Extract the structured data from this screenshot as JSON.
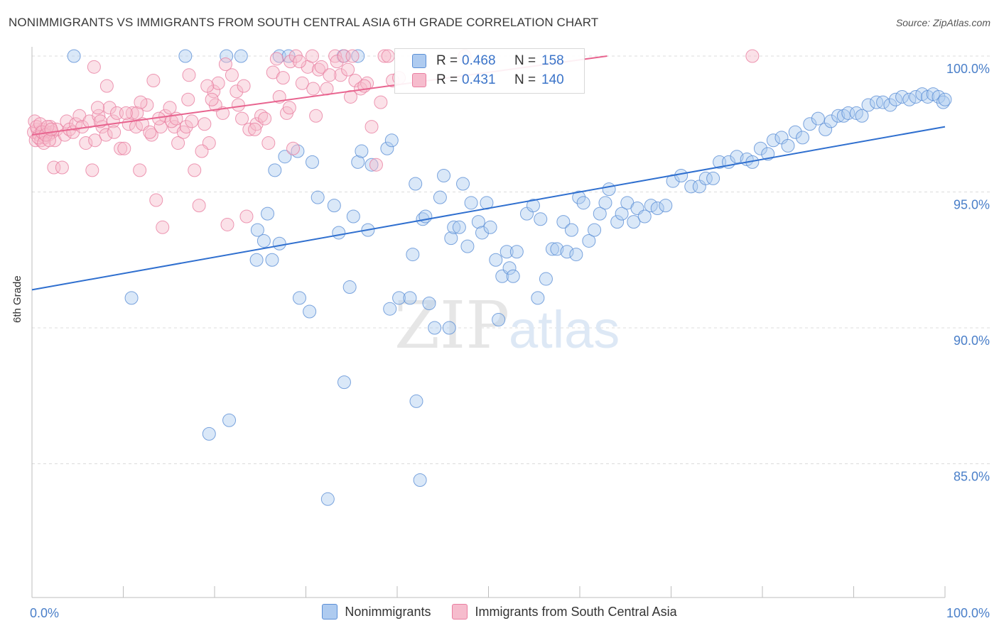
{
  "title": "NONIMMIGRANTS VS IMMIGRANTS FROM SOUTH CENTRAL ASIA 6TH GRADE CORRELATION CHART",
  "source": "Source: ZipAtlas.com",
  "watermark": {
    "zip": "ZIP",
    "atlas": "atlas"
  },
  "colors": {
    "blue": "#5b8fd6",
    "blue_fill": "#aecbf0",
    "pink": "#e97ea0",
    "pink_fill": "#f6bccd",
    "blue_line": "#2f6fcf",
    "pink_line": "#e8648f",
    "tick_text": "#4a7fc9"
  },
  "stats": [
    {
      "r_label": "R =",
      "r_value": "0.468",
      "n_label": "N =",
      "n_value": "158"
    },
    {
      "r_label": "R =",
      "r_value": "0.431",
      "n_label": "N =",
      "n_value": "140"
    }
  ],
  "legend": [
    "Nonimmigrants",
    "Immigrants from South Central Asia"
  ],
  "chart_data": {
    "type": "scatter",
    "title": "NONIMMIGRANTS VS IMMIGRANTS FROM SOUTH CENTRAL ASIA 6TH GRADE CORRELATION CHART",
    "xlabel": "",
    "ylabel": "6th Grade",
    "xlim": [
      0,
      100
    ],
    "ylim": [
      80.5,
      100.7
    ],
    "x_tick_labels": [
      "0.0%",
      "100.0%"
    ],
    "y_ticks": [
      100,
      95,
      90,
      85
    ],
    "y_tick_labels": [
      "100.0%",
      "95.0%",
      "90.0%",
      "85.0%"
    ],
    "grid": true,
    "legend_position": "bottom",
    "series": [
      {
        "name": "Nonimmigrants",
        "color": "#5b8fd6",
        "trend": [
          [
            0,
            91.4
          ],
          [
            100,
            97.4
          ]
        ],
        "points": [
          [
            4.6,
            100
          ],
          [
            16.8,
            100
          ],
          [
            21.3,
            100
          ],
          [
            22.9,
            100
          ],
          [
            27.1,
            100
          ],
          [
            28.1,
            100
          ],
          [
            34.1,
            100
          ],
          [
            35.7,
            100
          ],
          [
            10.9,
            91.1
          ],
          [
            19.4,
            86.1
          ],
          [
            21.6,
            86.6
          ],
          [
            24.6,
            92.5
          ],
          [
            24.7,
            93.6
          ],
          [
            25.4,
            93.2
          ],
          [
            25.8,
            94.2
          ],
          [
            26.3,
            92.5
          ],
          [
            26.6,
            95.8
          ],
          [
            27.1,
            93.1
          ],
          [
            27.7,
            96.3
          ],
          [
            29.1,
            96.5
          ],
          [
            29.3,
            91.1
          ],
          [
            30.4,
            90.6
          ],
          [
            30.7,
            96.1
          ],
          [
            31.3,
            94.8
          ],
          [
            32.4,
            83.7
          ],
          [
            33.1,
            94.5
          ],
          [
            33.6,
            93.5
          ],
          [
            34.2,
            88
          ],
          [
            34.8,
            91.5
          ],
          [
            35.2,
            94.1
          ],
          [
            35.7,
            96.1
          ],
          [
            36.1,
            96.5
          ],
          [
            36.8,
            93.6
          ],
          [
            37.2,
            96
          ],
          [
            38.9,
            96.6
          ],
          [
            39.4,
            96.9
          ],
          [
            39.2,
            90.7
          ],
          [
            40.2,
            91.1
          ],
          [
            41.4,
            91.1
          ],
          [
            41.7,
            92.7
          ],
          [
            42,
            95.3
          ],
          [
            42.1,
            87.3
          ],
          [
            42.5,
            84.4
          ],
          [
            42.8,
            94
          ],
          [
            43.1,
            94.1
          ],
          [
            43.5,
            90.9
          ],
          [
            44.1,
            90
          ],
          [
            44.7,
            94.8
          ],
          [
            45.1,
            95.6
          ],
          [
            45.7,
            90
          ],
          [
            45.9,
            93.3
          ],
          [
            46.2,
            93.7
          ],
          [
            46.8,
            93.7
          ],
          [
            47.2,
            95.3
          ],
          [
            47.7,
            93
          ],
          [
            48.1,
            94.6
          ],
          [
            48.9,
            93.9
          ],
          [
            49.3,
            93.5
          ],
          [
            49.8,
            94.6
          ],
          [
            50.2,
            93.7
          ],
          [
            50.8,
            92.5
          ],
          [
            51.1,
            90.3
          ],
          [
            51.5,
            91.9
          ],
          [
            52,
            92.8
          ],
          [
            52.3,
            92.2
          ],
          [
            52.7,
            91.9
          ],
          [
            53.1,
            92.8
          ],
          [
            54.2,
            94.2
          ],
          [
            54.9,
            94.5
          ],
          [
            55.4,
            91.1
          ],
          [
            55.7,
            94
          ],
          [
            56.3,
            91.8
          ],
          [
            57,
            92.9
          ],
          [
            57.5,
            92.9
          ],
          [
            58.2,
            93.9
          ],
          [
            58.6,
            92.8
          ],
          [
            59.1,
            93.6
          ],
          [
            59.6,
            92.7
          ],
          [
            59.9,
            94.8
          ],
          [
            60.4,
            94.6
          ],
          [
            61,
            93.2
          ],
          [
            61.6,
            93.6
          ],
          [
            62.2,
            94.2
          ],
          [
            62.8,
            94.6
          ],
          [
            63.2,
            95.1
          ],
          [
            64.1,
            93.9
          ],
          [
            64.6,
            94.2
          ],
          [
            65.2,
            94.6
          ],
          [
            65.9,
            93.9
          ],
          [
            66.3,
            94.4
          ],
          [
            67.1,
            94.1
          ],
          [
            67.8,
            94.5
          ],
          [
            68.5,
            94.4
          ],
          [
            69.4,
            94.5
          ],
          [
            70.2,
            95.4
          ],
          [
            71.1,
            95.6
          ],
          [
            72.2,
            95.2
          ],
          [
            73.1,
            95.2
          ],
          [
            73.8,
            95.5
          ],
          [
            74.6,
            95.5
          ],
          [
            75.3,
            96.1
          ],
          [
            76.3,
            96.1
          ],
          [
            77.2,
            96.3
          ],
          [
            78.3,
            96.2
          ],
          [
            78.9,
            96.1
          ],
          [
            79.8,
            96.6
          ],
          [
            80.6,
            96.4
          ],
          [
            81.2,
            96.9
          ],
          [
            82.1,
            97
          ],
          [
            82.8,
            96.7
          ],
          [
            83.6,
            97.2
          ],
          [
            84.4,
            97
          ],
          [
            85.2,
            97.5
          ],
          [
            86.1,
            97.7
          ],
          [
            86.9,
            97.3
          ],
          [
            87.5,
            97.6
          ],
          [
            88.3,
            97.8
          ],
          [
            88.9,
            97.8
          ],
          [
            89.4,
            97.9
          ],
          [
            90.3,
            97.9
          ],
          [
            90.9,
            97.8
          ],
          [
            91.6,
            98.2
          ],
          [
            92.5,
            98.3
          ],
          [
            93.2,
            98.3
          ],
          [
            94,
            98.2
          ],
          [
            94.6,
            98.4
          ],
          [
            95.3,
            98.5
          ],
          [
            96.1,
            98.4
          ],
          [
            96.8,
            98.5
          ],
          [
            97.5,
            98.6
          ],
          [
            98.1,
            98.5
          ],
          [
            98.7,
            98.6
          ],
          [
            99.3,
            98.5
          ],
          [
            99.8,
            98.3
          ],
          [
            100,
            98.4
          ]
        ]
      },
      {
        "name": "Immigrants from South Central Asia",
        "color": "#e97ea0",
        "trend": [
          [
            0,
            97.1
          ],
          [
            63,
            100
          ]
        ],
        "points": [
          [
            0.2,
            97.2
          ],
          [
            0.4,
            96.9
          ],
          [
            0.6,
            97.3
          ],
          [
            0.8,
            97.1
          ],
          [
            1.0,
            96.9
          ],
          [
            1.2,
            97.3
          ],
          [
            1.4,
            97
          ],
          [
            1.6,
            97.2
          ],
          [
            1.8,
            97.1
          ],
          [
            2,
            97.4
          ],
          [
            2.2,
            97.2
          ],
          [
            2.5,
            96.9
          ],
          [
            2.7,
            97.3
          ],
          [
            2.4,
            95.9
          ],
          [
            3.3,
            95.9
          ],
          [
            3.6,
            97.1
          ],
          [
            3.8,
            97.6
          ],
          [
            4.1,
            97.3
          ],
          [
            4.5,
            97.2
          ],
          [
            4.8,
            97.5
          ],
          [
            5.2,
            97.8
          ],
          [
            5.5,
            97.4
          ],
          [
            5.9,
            96.8
          ],
          [
            6.3,
            97.6
          ],
          [
            6.6,
            95.8
          ],
          [
            6.9,
            96.9
          ],
          [
            7.3,
            97.8
          ],
          [
            7.7,
            97.4
          ],
          [
            8.1,
            97.1
          ],
          [
            8.5,
            98.1
          ],
          [
            8.9,
            97.6
          ],
          [
            9.3,
            97.9
          ],
          [
            9.7,
            96.6
          ],
          [
            10.1,
            96.6
          ],
          [
            10.6,
            97.5
          ],
          [
            11,
            97.9
          ],
          [
            11.4,
            97.4
          ],
          [
            11.8,
            95.8
          ],
          [
            12.1,
            97.5
          ],
          [
            12.6,
            98.2
          ],
          [
            13.1,
            97.1
          ],
          [
            13.6,
            94.7
          ],
          [
            14.1,
            97.4
          ],
          [
            14.6,
            97.8
          ],
          [
            15.1,
            98.1
          ],
          [
            15.6,
            97.4
          ],
          [
            16,
            96.8
          ],
          [
            16.6,
            97.2
          ],
          [
            17.1,
            98.4
          ],
          [
            17.8,
            95.8
          ],
          [
            18.3,
            94.5
          ],
          [
            18.9,
            97.5
          ],
          [
            19.4,
            96.8
          ],
          [
            19.9,
            98.7
          ],
          [
            20.4,
            99
          ],
          [
            20.9,
            97.9
          ],
          [
            21.4,
            93.8
          ],
          [
            21.9,
            99.3
          ],
          [
            22.6,
            98.2
          ],
          [
            23,
            97.7
          ],
          [
            23.5,
            94.1
          ],
          [
            23.8,
            97.3
          ],
          [
            24.6,
            97.5
          ],
          [
            25.1,
            97.8
          ],
          [
            25.9,
            96.8
          ],
          [
            26.4,
            99.4
          ],
          [
            27.1,
            98.5
          ],
          [
            27.5,
            99.2
          ],
          [
            28.3,
            99.8
          ],
          [
            28.9,
            100
          ],
          [
            29.6,
            99
          ],
          [
            30.2,
            99.6
          ],
          [
            30.8,
            98.8
          ],
          [
            31.4,
            99.5
          ],
          [
            32.3,
            98.8
          ],
          [
            33.2,
            100
          ],
          [
            33.8,
            99.3
          ],
          [
            34.6,
            99.5
          ],
          [
            35.4,
            99.1
          ],
          [
            36,
            98.8
          ],
          [
            36.7,
            99
          ],
          [
            37.2,
            97.4
          ],
          [
            37.7,
            96
          ],
          [
            38.2,
            98.3
          ],
          [
            6.8,
            99.6
          ],
          [
            7.2,
            98.1
          ],
          [
            7.5,
            97.6
          ],
          [
            8.2,
            98.9
          ],
          [
            11.5,
            97.9
          ],
          [
            12.9,
            97.2
          ],
          [
            13.3,
            99.1
          ],
          [
            14.3,
            93.7
          ],
          [
            15.3,
            97.6
          ],
          [
            16.9,
            97.4
          ],
          [
            17.2,
            99.3
          ],
          [
            18.6,
            96.5
          ],
          [
            19.2,
            98.9
          ],
          [
            20.1,
            98.2
          ],
          [
            21.2,
            99.7
          ],
          [
            22.4,
            98.7
          ],
          [
            24.4,
            97.3
          ],
          [
            26.8,
            99.9
          ],
          [
            27.9,
            97.9
          ],
          [
            28.6,
            96.6
          ],
          [
            29.3,
            99.8
          ],
          [
            30.7,
            100
          ],
          [
            31.7,
            99.6
          ],
          [
            32.6,
            99.3
          ],
          [
            33.4,
            99.8
          ],
          [
            34.2,
            100
          ],
          [
            35.1,
            100
          ],
          [
            36.4,
            98.9
          ],
          [
            38.6,
            100
          ],
          [
            39,
            100
          ],
          [
            39.5,
            99.1
          ],
          [
            40.2,
            99.2
          ],
          [
            47.4,
            100
          ],
          [
            78.9,
            100
          ],
          [
            0.3,
            97.6
          ],
          [
            0.5,
            97.4
          ],
          [
            0.7,
            97
          ],
          [
            0.9,
            97.5
          ],
          [
            1.1,
            97.2
          ],
          [
            1.3,
            96.8
          ],
          [
            1.5,
            97.1
          ],
          [
            1.7,
            97.4
          ],
          [
            1.9,
            96.9
          ],
          [
            2.1,
            97.3
          ],
          [
            9,
            97.2
          ],
          [
            10.3,
            97.9
          ],
          [
            11.9,
            98.3
          ],
          [
            13.9,
            97.7
          ],
          [
            15.8,
            97.7
          ],
          [
            17.5,
            97.6
          ],
          [
            19.7,
            98.4
          ],
          [
            23.2,
            98.9
          ],
          [
            25.5,
            97.7
          ],
          [
            28.2,
            98.1
          ],
          [
            31.1,
            97.8
          ],
          [
            34.9,
            98.5
          ]
        ]
      }
    ]
  }
}
